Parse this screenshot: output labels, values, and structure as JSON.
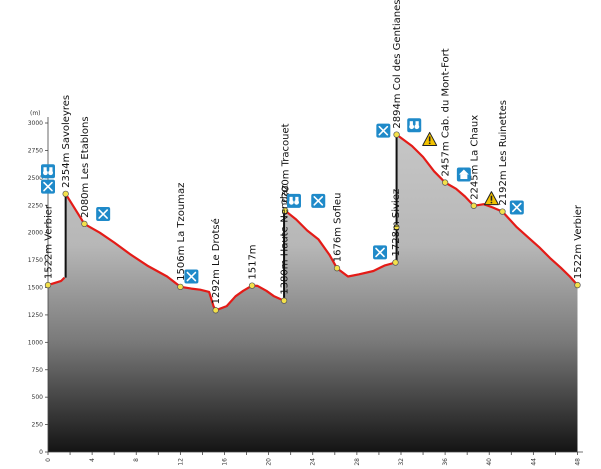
{
  "chart_data": {
    "type": "area",
    "title": "",
    "xlabel": "",
    "ylabel": "(m)",
    "xlim": [
      0,
      48.5
    ],
    "ylim": [
      0,
      3000
    ],
    "yticks": [
      0,
      250,
      500,
      750,
      1000,
      1250,
      1500,
      1750,
      2000,
      2250,
      2500,
      2750,
      3000
    ],
    "xticks": [
      0,
      4,
      8,
      12,
      16,
      20,
      24,
      28,
      32,
      36,
      40,
      44,
      48
    ],
    "grid": false,
    "series": [
      {
        "values": [
          [
            0,
            1522
          ],
          [
            1.2,
            1560
          ],
          [
            1.5,
            1590
          ],
          [
            1.6,
            2354
          ],
          [
            3.3,
            2080
          ],
          [
            4.7,
            2000
          ],
          [
            6,
            1910
          ],
          [
            7.5,
            1800
          ],
          [
            9,
            1700
          ],
          [
            10.8,
            1600
          ],
          [
            12,
            1506
          ],
          [
            13,
            1490
          ],
          [
            13.8,
            1480
          ],
          [
            14.6,
            1460
          ],
          [
            15,
            1330
          ],
          [
            15.2,
            1292
          ],
          [
            16.2,
            1330
          ],
          [
            17,
            1420
          ],
          [
            17.7,
            1470
          ],
          [
            18.5,
            1517
          ],
          [
            19,
            1515
          ],
          [
            19.8,
            1470
          ],
          [
            20.5,
            1420
          ],
          [
            21.4,
            1380
          ],
          [
            21.5,
            2200
          ],
          [
            22.5,
            2120
          ],
          [
            23.5,
            2020
          ],
          [
            24.5,
            1940
          ],
          [
            25.5,
            1800
          ],
          [
            26.2,
            1676
          ],
          [
            27.2,
            1600
          ],
          [
            28.2,
            1620
          ],
          [
            29.5,
            1650
          ],
          [
            30.5,
            1700
          ],
          [
            31.5,
            1728
          ],
          [
            31.6,
            2894
          ],
          [
            33,
            2790
          ],
          [
            34,
            2690
          ],
          [
            35,
            2560
          ],
          [
            36,
            2457
          ],
          [
            37,
            2400
          ],
          [
            37.8,
            2330
          ],
          [
            38.6,
            2245
          ],
          [
            39.5,
            2260
          ],
          [
            40.3,
            2230
          ],
          [
            41.2,
            2192
          ],
          [
            42.5,
            2050
          ],
          [
            43.5,
            1960
          ],
          [
            44.5,
            1870
          ],
          [
            45.5,
            1770
          ],
          [
            46.5,
            1680
          ],
          [
            47.3,
            1600
          ],
          [
            48,
            1522
          ]
        ]
      }
    ],
    "lifts": [
      {
        "x": 1.6,
        "from": 1590,
        "to": 2354
      },
      {
        "x": 21.4,
        "from": 1380,
        "to": 2200
      },
      {
        "x": 31.6,
        "from": 1728,
        "to": 2894
      }
    ],
    "lift_midpoints": [
      {
        "x": 31.6,
        "y": 2050
      }
    ],
    "waypoints": [
      {
        "x": 0,
        "y": 1522,
        "label": "1522m Verbier"
      },
      {
        "x": 1.6,
        "y": 2354,
        "label": "2354m Savoleyres"
      },
      {
        "x": 3.3,
        "y": 2080,
        "label": "2080m Les Etablons"
      },
      {
        "x": 12,
        "y": 1506,
        "label": "1506m La Tzoumaz"
      },
      {
        "x": 15.2,
        "y": 1292,
        "label": "1292m Le Drotsé"
      },
      {
        "x": 18.5,
        "y": 1517,
        "label": "1517m"
      },
      {
        "x": 21.4,
        "y": 1380,
        "label": "1380m Haute-Nendaz"
      },
      {
        "x": 21.5,
        "y": 2200,
        "label": "2200m Tracouet"
      },
      {
        "x": 26.2,
        "y": 1676,
        "label": "1676m Sofleu"
      },
      {
        "x": 31.5,
        "y": 1728,
        "label": "1728m Siviez"
      },
      {
        "x": 31.6,
        "y": 2894,
        "label": "2894m Col des Gentianes"
      },
      {
        "x": 36,
        "y": 2457,
        "label": "2457m Cab. du Mont-Fort"
      },
      {
        "x": 38.6,
        "y": 2245,
        "label": "2245m La Chaux"
      },
      {
        "x": 41.2,
        "y": 2192,
        "label": "2192m Les Ruinettes"
      },
      {
        "x": 48,
        "y": 1522,
        "label": "1522m Verbier"
      }
    ],
    "icons": [
      {
        "type": "binoculars-icon",
        "x": 0,
        "y": 2560
      },
      {
        "type": "restaurant-icon",
        "x": 0,
        "y": 2420
      },
      {
        "type": "restaurant-icon",
        "x": 5,
        "y": 2170
      },
      {
        "type": "restaurant-icon",
        "x": 13,
        "y": 1600
      },
      {
        "type": "binoculars-icon",
        "x": 22.3,
        "y": 2290
      },
      {
        "type": "restaurant-icon",
        "x": 24.5,
        "y": 2290
      },
      {
        "type": "restaurant-icon",
        "x": 30.1,
        "y": 1820
      },
      {
        "type": "restaurant-icon",
        "x": 30.4,
        "y": 2930
      },
      {
        "type": "binoculars-icon",
        "x": 33.2,
        "y": 2980
      },
      {
        "type": "hut-icon",
        "x": 37.7,
        "y": 2530
      },
      {
        "type": "restaurant-icon",
        "x": 42.5,
        "y": 2230
      }
    ],
    "warnings": [
      {
        "x": 34.6,
        "y": 2850
      },
      {
        "x": 40.2,
        "y": 2310
      }
    ],
    "colors": {
      "profile_line": "#e41b17",
      "lift_line": "#111111",
      "fill_top": "#c6c6c6",
      "fill_bottom": "#141414",
      "icon_blue": "#1f8ac9",
      "warning_yellow": "#f2c200"
    }
  }
}
